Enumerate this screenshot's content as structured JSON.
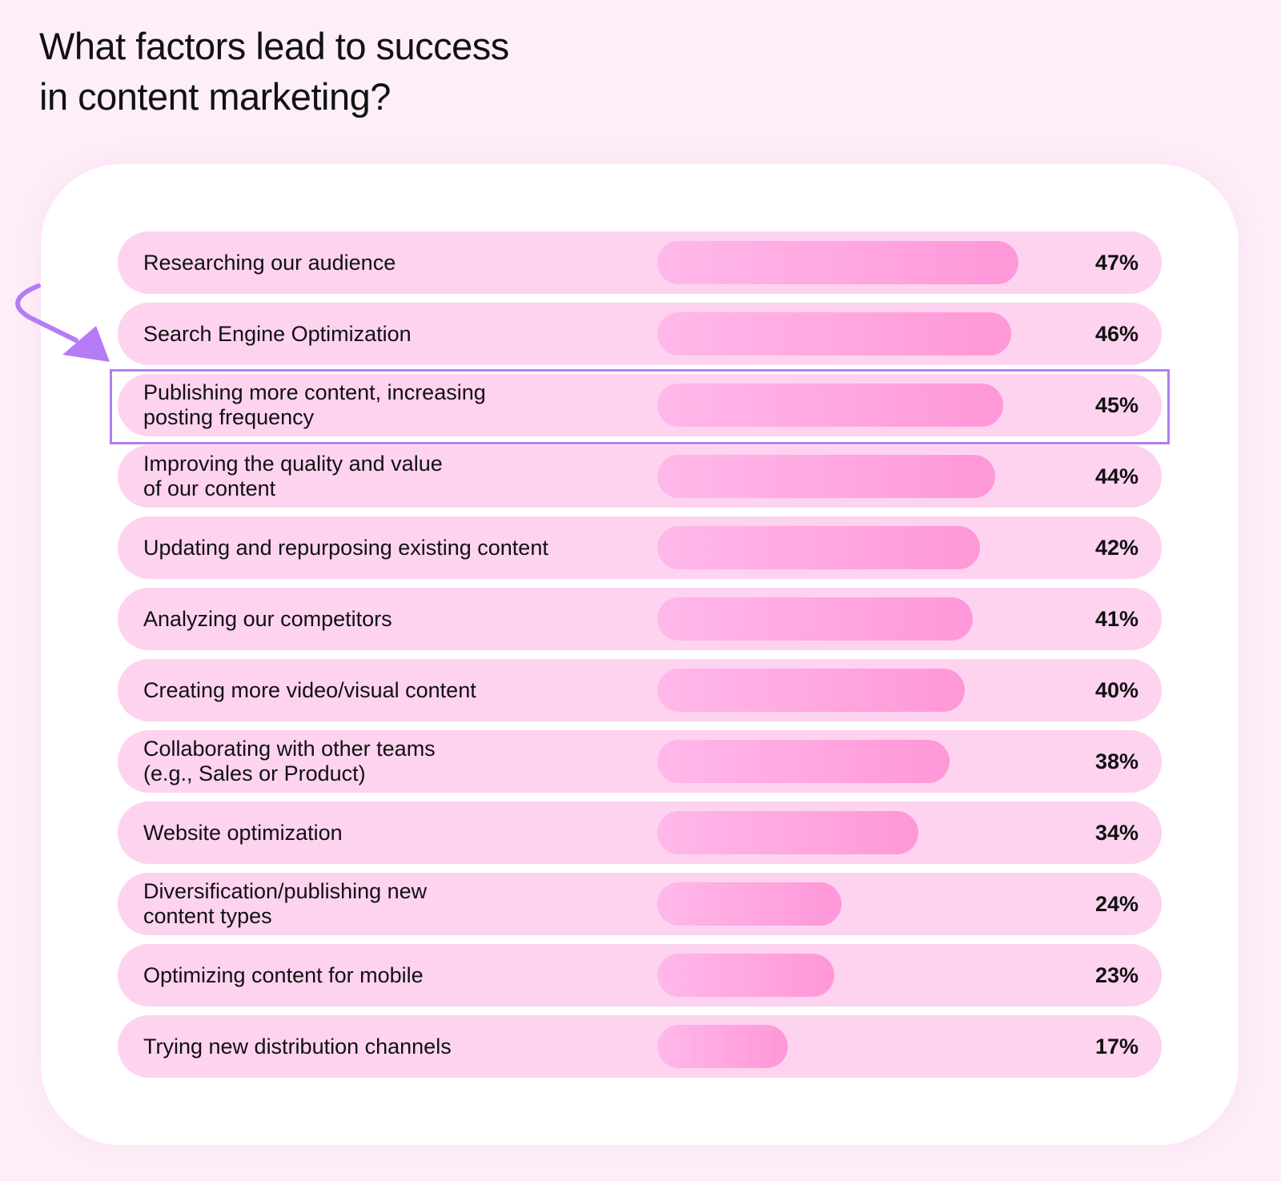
{
  "colors": {
    "background": "#fdeef8",
    "row": "#fdd3f0",
    "bar_start": "#ffb8ea",
    "bar_end": "#ff97d8",
    "highlight": "#b57cf6"
  },
  "chart_data": {
    "type": "bar",
    "orientation": "horizontal",
    "title": "What factors lead to success\nin content marketing?",
    "unit": "%",
    "highlighted_category": "Publishing more content, increasing posting frequency",
    "categories": [
      "Researching our audience",
      "Search Engine Optimization",
      "Publishing more content, increasing\nposting frequency",
      "Improving the quality and value\nof our content",
      "Updating and repurposing existing content",
      "Analyzing our competitors",
      "Creating more video/visual content",
      "Collaborating with other teams\n(e.g., Sales or Product)",
      "Website optimization",
      "Diversification/publishing new\ncontent types",
      "Optimizing content for mobile",
      "Trying new distribution channels"
    ],
    "values": [
      47,
      46,
      45,
      44,
      42,
      41,
      40,
      38,
      34,
      24,
      23,
      17
    ],
    "labels": [
      "47%",
      "46%",
      "45%",
      "44%",
      "42%",
      "41%",
      "40%",
      "38%",
      "34%",
      "24%",
      "23%",
      "17%"
    ]
  }
}
